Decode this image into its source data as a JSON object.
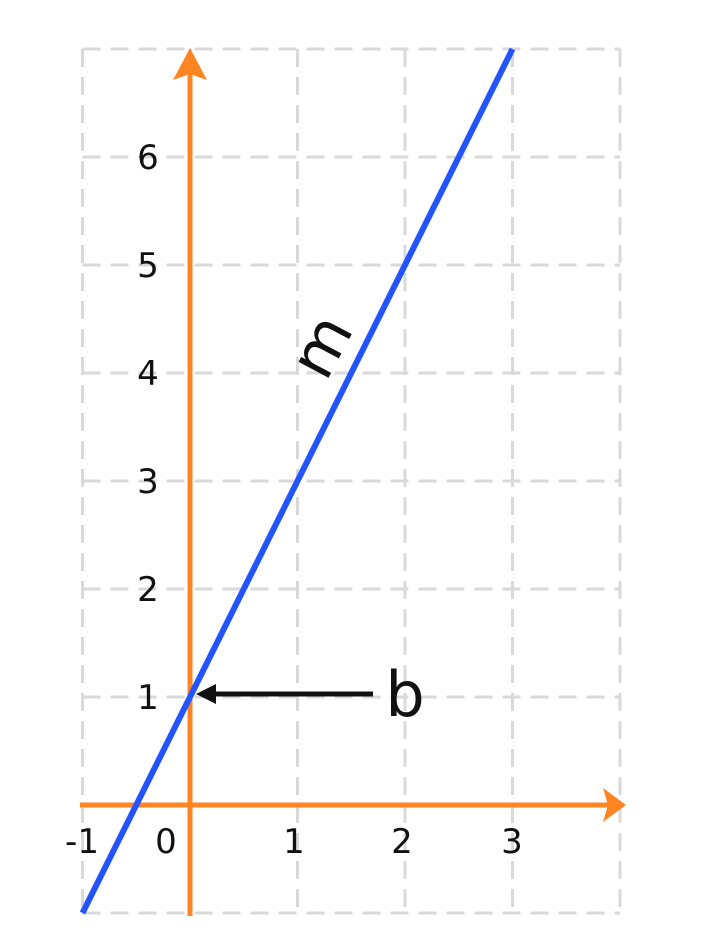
{
  "chart_data": {
    "type": "line",
    "xlim": [
      -1,
      4
    ],
    "ylim": [
      -1,
      7
    ],
    "x_tick_labels": [
      {
        "value": -1,
        "label": "-1"
      },
      {
        "value": 0,
        "label": "0"
      },
      {
        "value": 1,
        "label": "1"
      },
      {
        "value": 2,
        "label": "2"
      },
      {
        "value": 3,
        "label": "3"
      }
    ],
    "y_tick_labels": [
      {
        "value": 1,
        "label": "1"
      },
      {
        "value": 2,
        "label": "2"
      },
      {
        "value": 3,
        "label": "3"
      },
      {
        "value": 4,
        "label": "4"
      },
      {
        "value": 5,
        "label": "5"
      },
      {
        "value": 6,
        "label": "6"
      }
    ],
    "grid": true,
    "grid_style": "dashed",
    "series": [
      {
        "x": [
          -1,
          3
        ],
        "y": [
          -1,
          7
        ],
        "color": "#2255ff"
      }
    ],
    "annotations": [
      {
        "text": "m",
        "target": "slope",
        "rotated": true
      },
      {
        "text": "b",
        "target": "y-intercept",
        "point": [
          0,
          1
        ],
        "arrow": true
      }
    ],
    "colors": {
      "axes": "#ff8522",
      "line": "#2255ff",
      "grid": "#d9d9d9",
      "arrow": "#111111",
      "text": "#111111"
    }
  }
}
